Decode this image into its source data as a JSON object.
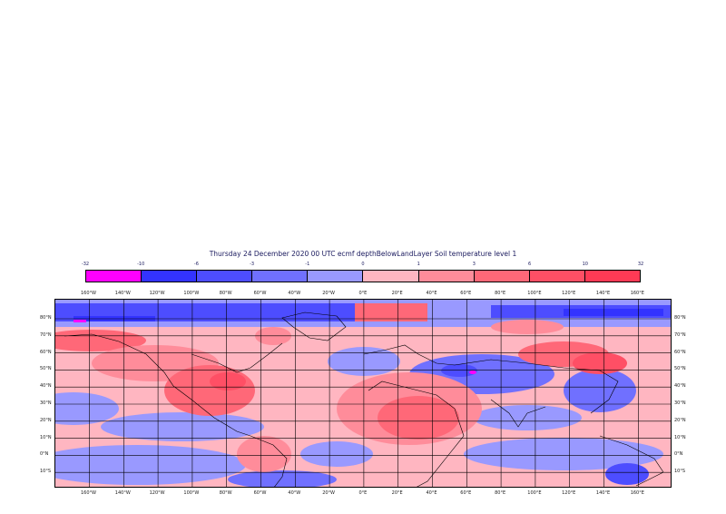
{
  "title": "Thursday 24 December 2020 00 UTC ecmf depthBelowLandLayer  Soil temperature level 1",
  "legend": {
    "ticks": [
      "-32",
      "-10",
      "-6",
      "-3",
      "-1",
      "0",
      "1",
      "3",
      "6",
      "10",
      "32"
    ],
    "colors": [
      "#ff00ff",
      "#3333ff",
      "#4d4dff",
      "#7070ff",
      "#9999ff",
      "#ffb6c1",
      "#ff8c9a",
      "#ff6878",
      "#ff4f65",
      "#ff3a55"
    ]
  },
  "map": {
    "lon_labels": [
      "160°W",
      "140°W",
      "120°W",
      "100°W",
      "80°W",
      "60°W",
      "40°W",
      "20°W",
      "0°E",
      "20°E",
      "40°E",
      "60°E",
      "80°E",
      "100°E",
      "120°E",
      "140°E",
      "160°E"
    ],
    "lat_labels": [
      "80°N",
      "70°N",
      "60°N",
      "50°N",
      "40°N",
      "30°N",
      "20°N",
      "10°N",
      "0°N",
      "10°S"
    ]
  }
}
